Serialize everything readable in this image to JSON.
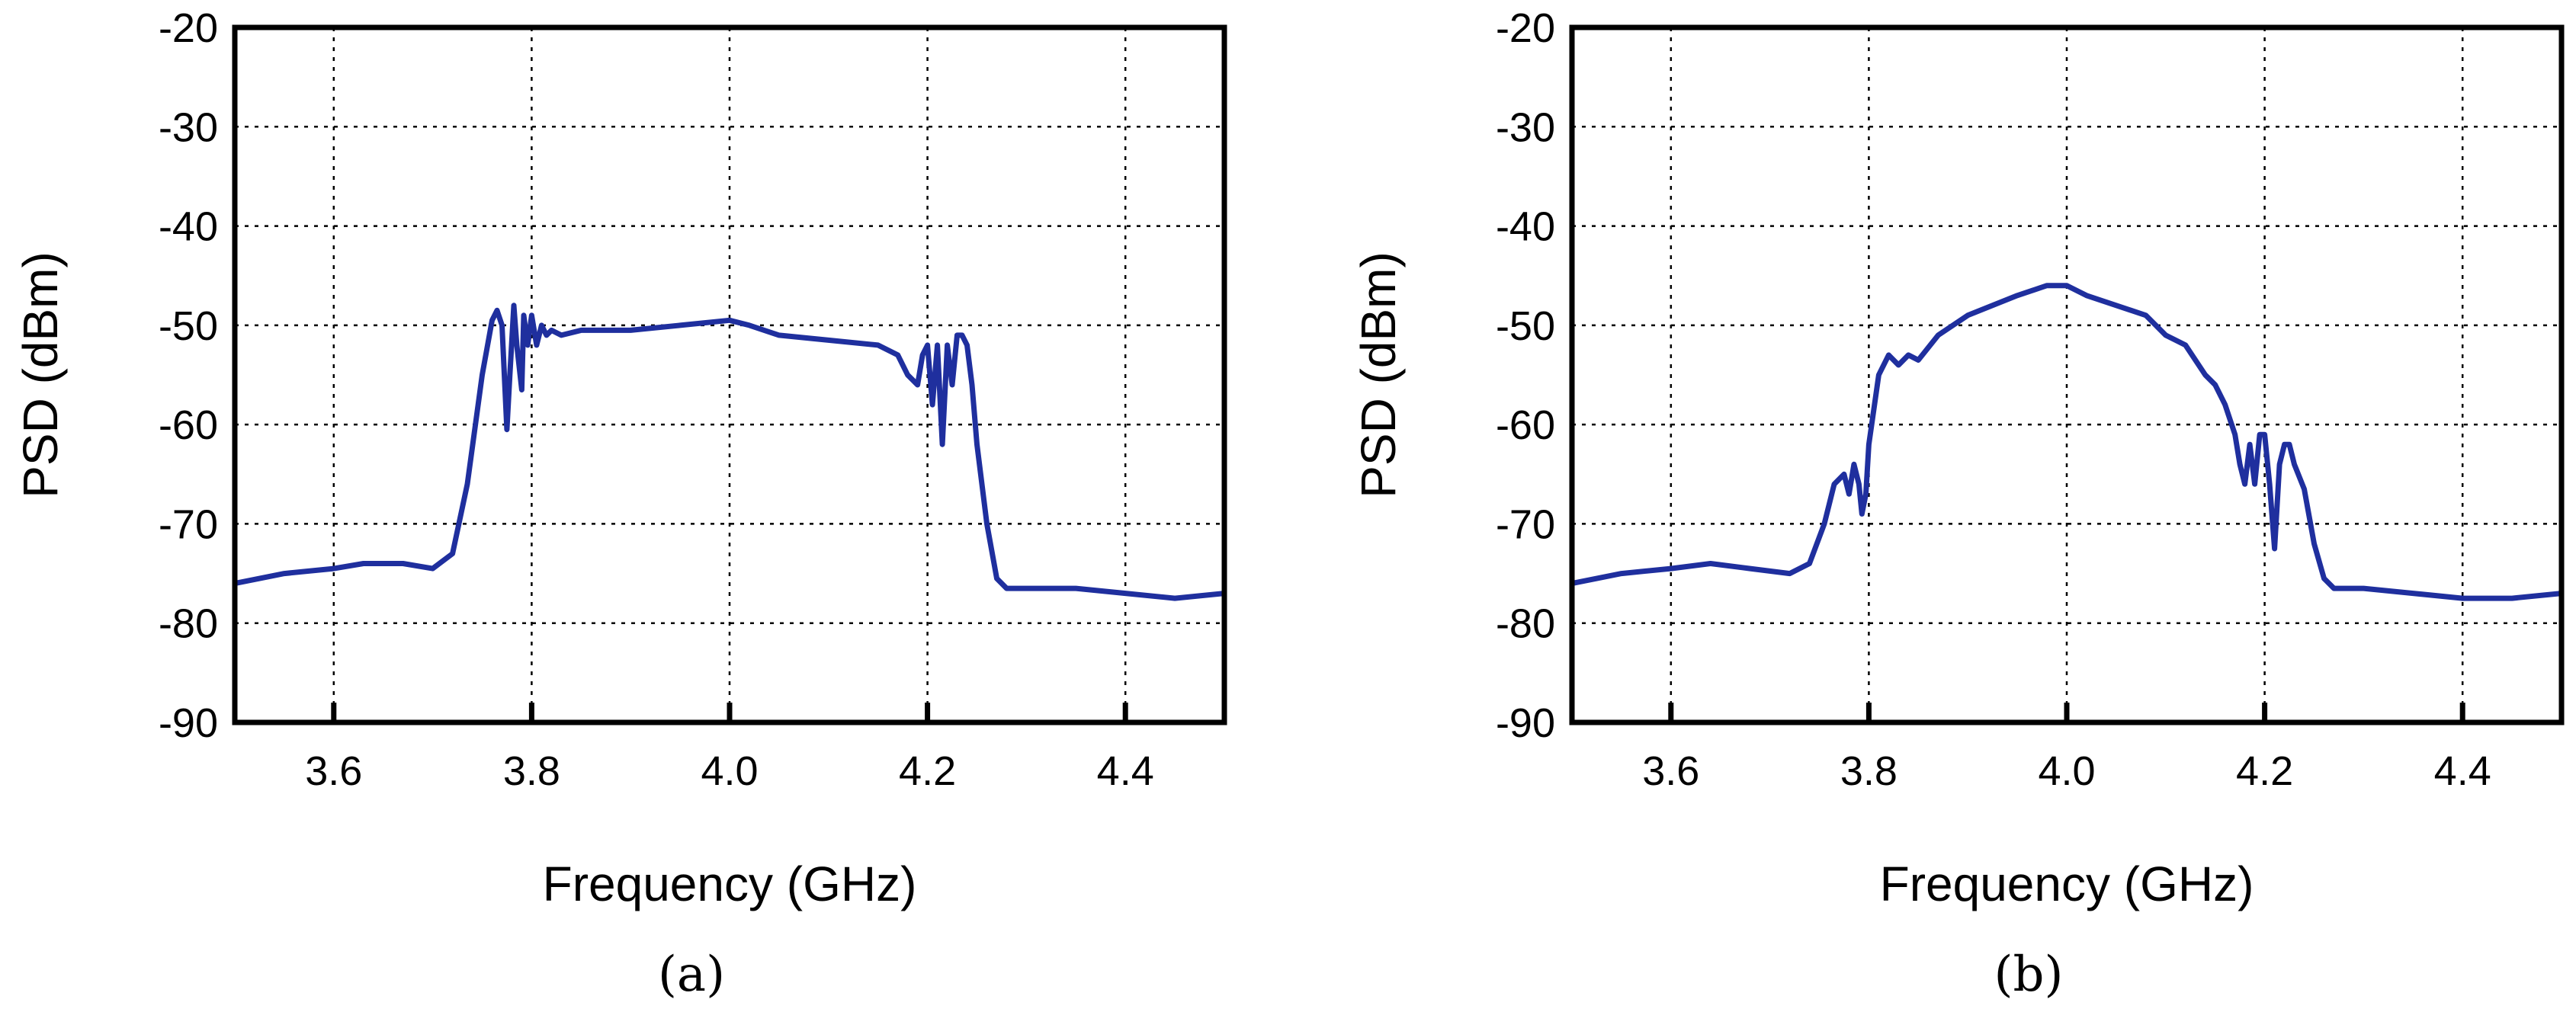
{
  "colors": {
    "series": "#1f2f9e",
    "axis": "#000000",
    "background": "#ffffff"
  },
  "chart_data": [
    {
      "type": "line",
      "panel_label": "(a)",
      "xlabel": "Frequency (GHz)",
      "ylabel": "PSD (dBm)",
      "xlim": [
        3.5,
        4.5
      ],
      "ylim": [
        -90,
        -20
      ],
      "xticks": [
        3.6,
        3.8,
        4.0,
        4.2,
        4.4
      ],
      "xtick_labels": [
        "3.6",
        "3.8",
        "4.0",
        "4.2",
        "4.4"
      ],
      "yticks": [
        -90,
        -80,
        -70,
        -60,
        -50,
        -40,
        -30,
        -20
      ],
      "ytick_labels": [
        "-90",
        "-80",
        "-70",
        "-60",
        "-50",
        "-40",
        "-30",
        "-20"
      ],
      "grid": true,
      "series": [
        {
          "x": [
            3.5,
            3.55,
            3.6,
            3.63,
            3.67,
            3.7,
            3.72,
            3.735,
            3.75,
            3.76,
            3.765,
            3.77,
            3.775,
            3.778,
            3.782,
            3.785,
            3.79,
            3.792,
            3.796,
            3.8,
            3.805,
            3.81,
            3.815,
            3.82,
            3.83,
            3.85,
            3.9,
            3.95,
            4.0,
            4.02,
            4.05,
            4.1,
            4.15,
            4.17,
            4.18,
            4.19,
            4.195,
            4.2,
            4.205,
            4.21,
            4.215,
            4.22,
            4.225,
            4.23,
            4.235,
            4.24,
            4.245,
            4.25,
            4.26,
            4.27,
            4.28,
            4.3,
            4.35,
            4.4,
            4.45,
            4.5
          ],
          "y": [
            -76,
            -75,
            -74.5,
            -74,
            -74,
            -74.5,
            -73,
            -66,
            -55,
            -49.5,
            -48.5,
            -50,
            -60.5,
            -55,
            -48,
            -52,
            -56.5,
            -49,
            -52,
            -49,
            -52,
            -50,
            -51,
            -50.5,
            -51,
            -50.5,
            -50.5,
            -50,
            -49.5,
            -50,
            -51,
            -51.5,
            -52,
            -53,
            -55,
            -56,
            -53,
            -52,
            -58,
            -52,
            -62,
            -52,
            -56,
            -51,
            -51,
            -52,
            -56,
            -62,
            -70,
            -75.5,
            -76.5,
            -76.5,
            -76.5,
            -77,
            -77.5,
            -77
          ]
        }
      ]
    },
    {
      "type": "line",
      "panel_label": "(b)",
      "xlabel": "Frequency (GHz)",
      "ylabel": "PSD (dBm)",
      "xlim": [
        3.5,
        4.5
      ],
      "ylim": [
        -90,
        -20
      ],
      "xticks": [
        3.6,
        3.8,
        4.0,
        4.2,
        4.4
      ],
      "xtick_labels": [
        "3.6",
        "3.8",
        "4.0",
        "4.2",
        "4.4"
      ],
      "yticks": [
        -90,
        -80,
        -70,
        -60,
        -50,
        -40,
        -30,
        -20
      ],
      "ytick_labels": [
        "-90",
        "-80",
        "-70",
        "-60",
        "-50",
        "-40",
        "-30",
        "-20"
      ],
      "grid": true,
      "series": [
        {
          "x": [
            3.5,
            3.55,
            3.6,
            3.64,
            3.68,
            3.72,
            3.74,
            3.755,
            3.765,
            3.775,
            3.78,
            3.785,
            3.79,
            3.793,
            3.797,
            3.8,
            3.81,
            3.82,
            3.83,
            3.84,
            3.85,
            3.87,
            3.9,
            3.95,
            3.98,
            4.0,
            4.02,
            4.05,
            4.08,
            4.1,
            4.12,
            4.14,
            4.15,
            4.16,
            4.17,
            4.175,
            4.18,
            4.185,
            4.19,
            4.195,
            4.2,
            4.205,
            4.21,
            4.215,
            4.22,
            4.225,
            4.23,
            4.24,
            4.25,
            4.26,
            4.27,
            4.3,
            4.35,
            4.4,
            4.45,
            4.5
          ],
          "y": [
            -76,
            -75,
            -74.5,
            -74,
            -74.5,
            -75,
            -74,
            -70,
            -66,
            -65,
            -67,
            -64,
            -66,
            -69,
            -67,
            -62,
            -55,
            -53,
            -54,
            -53,
            -53.5,
            -51,
            -49,
            -47,
            -46,
            -46,
            -47,
            -48,
            -49,
            -51,
            -52,
            -55,
            -56,
            -58,
            -61,
            -64,
            -66,
            -62,
            -66,
            -61,
            -61,
            -66,
            -72.5,
            -64,
            -62,
            -62,
            -64,
            -66.5,
            -72,
            -75.5,
            -76.5,
            -76.5,
            -77,
            -77.5,
            -77.5,
            -77
          ]
        }
      ]
    }
  ]
}
